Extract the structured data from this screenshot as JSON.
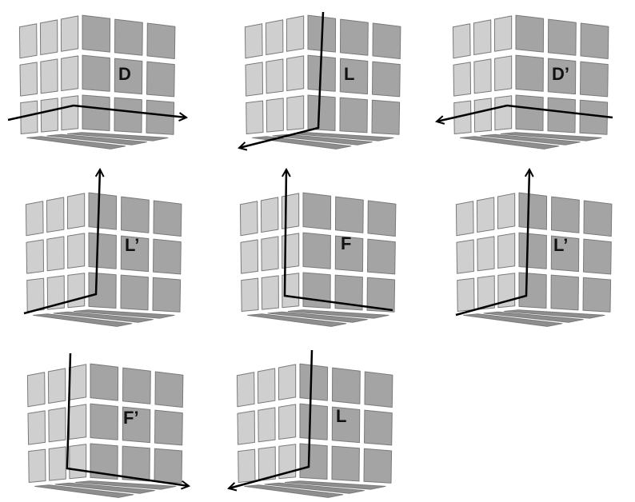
{
  "colors": {
    "left_face": "#cfcfcf",
    "front_face": "#a4a4a4",
    "bottom_face": "#8e8e8e",
    "sticker_edge": "#7a7a7a",
    "axis": "#000000",
    "label": "#111111"
  },
  "moves": [
    {
      "label": "D"
    },
    {
      "label": "L"
    },
    {
      "label": "D’"
    },
    {
      "label": "L’"
    },
    {
      "label": "F"
    },
    {
      "label": "L’"
    },
    {
      "label": "F’"
    },
    {
      "label": "L"
    }
  ]
}
